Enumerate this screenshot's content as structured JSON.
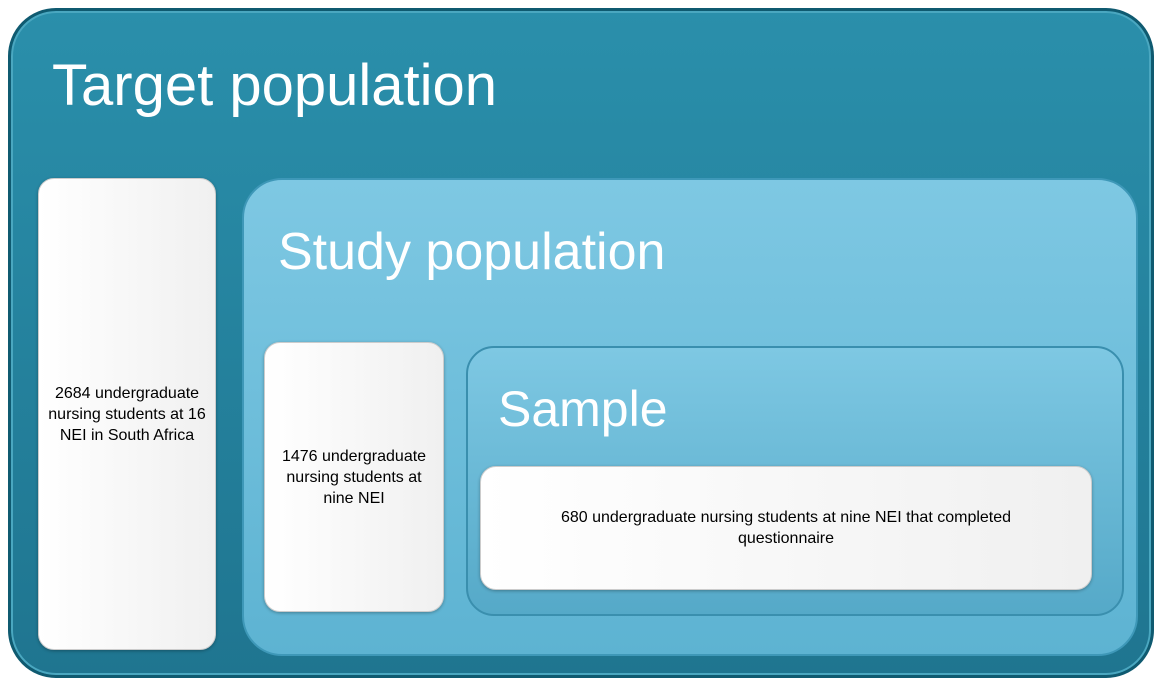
{
  "levels": [
    {
      "title": "Target population",
      "description": "2684 undergraduate nursing students at 16 NEI in South Africa"
    },
    {
      "title": "Study population",
      "description": "1476 undergraduate nursing students at nine NEI"
    },
    {
      "title": "Sample",
      "description": "680 undergraduate nursing students at nine NEI that completed questionnaire"
    }
  ]
}
